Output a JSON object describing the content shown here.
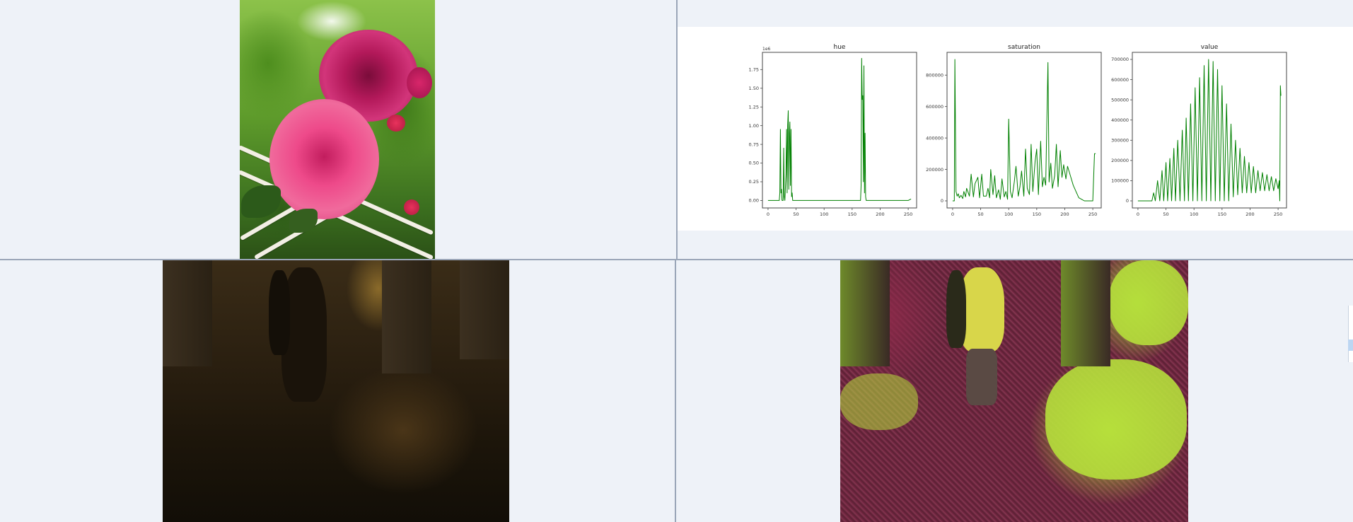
{
  "panes": {
    "top_left": {
      "image": "rose-photo"
    },
    "top_right": {
      "image": "histogram-figure"
    },
    "bottom_left": {
      "image": "dark-archway-photo"
    },
    "bottom_right": {
      "image": "false-color-archway-photo"
    }
  },
  "chart_data": [
    {
      "type": "line",
      "title": "hue",
      "color": "#008000",
      "exponent_label": "1e6",
      "xlim": [
        -10,
        265
      ],
      "ylim": [
        -0.1,
        1.98
      ],
      "xticks": [
        0,
        50,
        100,
        150,
        200,
        250
      ],
      "yticks": [
        0.0,
        0.25,
        0.5,
        0.75,
        1.0,
        1.25,
        1.5,
        1.75
      ],
      "ytick_labels": [
        "0.00",
        "0.25",
        "0.50",
        "0.75",
        "1.00",
        "1.25",
        "1.50",
        "1.75"
      ],
      "x": [
        0,
        20,
        21,
        22,
        23,
        24,
        25,
        27,
        28,
        29,
        30,
        32,
        33,
        34,
        35,
        36,
        37,
        38,
        39,
        40,
        41,
        42,
        43,
        44,
        45,
        46,
        50,
        100,
        160,
        165,
        166,
        167,
        168,
        169,
        170,
        171,
        172,
        173,
        174,
        175,
        176,
        180,
        250,
        255
      ],
      "values": [
        0.0,
        0.0,
        0.1,
        0.95,
        0.1,
        0.15,
        0.0,
        0.0,
        0.7,
        0.05,
        0.0,
        0.35,
        0.95,
        0.1,
        1.0,
        1.2,
        0.15,
        0.9,
        1.05,
        0.2,
        0.95,
        0.05,
        0.1,
        0.0,
        0.0,
        0.0,
        0.0,
        0.0,
        0.0,
        0.0,
        0.2,
        1.9,
        1.35,
        1.4,
        0.25,
        1.8,
        0.1,
        0.9,
        0.05,
        0.0,
        0.0,
        0.0,
        0.0,
        0.02
      ]
    },
    {
      "type": "line",
      "title": "saturation",
      "color": "#008000",
      "xlim": [
        -10,
        265
      ],
      "ylim": [
        -45000,
        945000
      ],
      "xticks": [
        0,
        50,
        100,
        150,
        200,
        250
      ],
      "yticks": [
        0,
        200000,
        400000,
        600000,
        800000
      ],
      "x": [
        0,
        3,
        4,
        6,
        8,
        10,
        12,
        15,
        18,
        20,
        23,
        25,
        30,
        33,
        37,
        40,
        45,
        48,
        52,
        55,
        60,
        63,
        66,
        68,
        72,
        75,
        78,
        82,
        85,
        88,
        92,
        95,
        98,
        100,
        103,
        106,
        110,
        113,
        117,
        120,
        123,
        127,
        130,
        133,
        137,
        140,
        143,
        147,
        150,
        153,
        157,
        160,
        163,
        166,
        170,
        172,
        175,
        178,
        182,
        185,
        188,
        192,
        195,
        198,
        202,
        205,
        210,
        215,
        220,
        225,
        230,
        235,
        240,
        245,
        250,
        253,
        255
      ],
      "values": [
        0,
        0,
        900000,
        60000,
        30000,
        45000,
        20000,
        35000,
        15000,
        60000,
        25000,
        80000,
        30000,
        170000,
        25000,
        110000,
        150000,
        20000,
        170000,
        30000,
        30000,
        80000,
        20000,
        200000,
        40000,
        160000,
        20000,
        70000,
        10000,
        140000,
        25000,
        60000,
        10000,
        520000,
        60000,
        20000,
        120000,
        220000,
        30000,
        90000,
        190000,
        30000,
        330000,
        80000,
        40000,
        360000,
        60000,
        250000,
        330000,
        40000,
        380000,
        90000,
        150000,
        100000,
        880000,
        120000,
        240000,
        80000,
        160000,
        360000,
        90000,
        320000,
        150000,
        230000,
        140000,
        220000,
        160000,
        100000,
        60000,
        20000,
        10000,
        0,
        0,
        0,
        0,
        300000,
        300000
      ]
    },
    {
      "type": "line",
      "title": "value",
      "color": "#008000",
      "xlim": [
        -10,
        265
      ],
      "ylim": [
        -35000,
        735000
      ],
      "xticks": [
        0,
        50,
        100,
        150,
        200,
        250
      ],
      "yticks": [
        0,
        100000,
        200000,
        300000,
        400000,
        500000,
        600000,
        700000
      ],
      "x": [
        0,
        25,
        28,
        31,
        35,
        39,
        43,
        46,
        50,
        53,
        57,
        60,
        64,
        67,
        71,
        75,
        79,
        83,
        86,
        90,
        94,
        98,
        102,
        106,
        110,
        114,
        118,
        122,
        126,
        130,
        134,
        138,
        142,
        146,
        150,
        154,
        158,
        162,
        166,
        170,
        174,
        178,
        182,
        186,
        190,
        194,
        198,
        202,
        206,
        210,
        214,
        218,
        222,
        226,
        230,
        234,
        238,
        242,
        246,
        250,
        252,
        253,
        254,
        255
      ],
      "values": [
        0,
        0,
        40000,
        0,
        100000,
        0,
        150000,
        0,
        190000,
        0,
        210000,
        0,
        260000,
        0,
        300000,
        0,
        350000,
        0,
        410000,
        0,
        480000,
        0,
        560000,
        0,
        610000,
        0,
        670000,
        0,
        700000,
        0,
        690000,
        0,
        650000,
        0,
        570000,
        0,
        480000,
        0,
        380000,
        20000,
        300000,
        30000,
        260000,
        40000,
        220000,
        40000,
        190000,
        40000,
        170000,
        40000,
        150000,
        50000,
        140000,
        50000,
        130000,
        50000,
        120000,
        50000,
        110000,
        60000,
        100000,
        0,
        570000,
        520000
      ]
    }
  ]
}
